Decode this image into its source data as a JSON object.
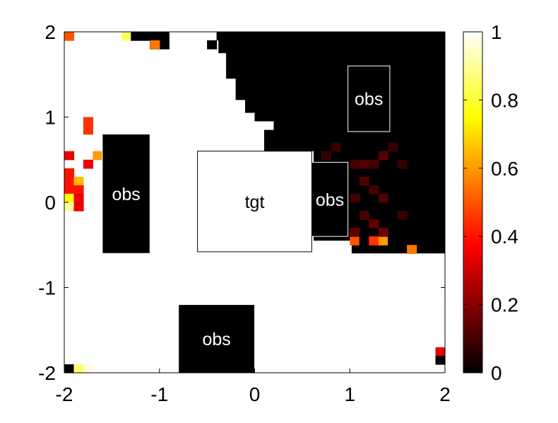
{
  "chart_data": {
    "type": "heatmap",
    "title": "",
    "xlabel": "",
    "ylabel": "",
    "xlim": [
      -2,
      2
    ],
    "ylim": [
      -2,
      2
    ],
    "xticks": [
      -2,
      -1,
      0,
      1,
      2
    ],
    "yticks": [
      -2,
      -1,
      0,
      1,
      2
    ],
    "xtick_labels": [
      "-2",
      "-1",
      "0",
      "1",
      "2"
    ],
    "ytick_labels": [
      "-2",
      "-1",
      "0",
      "1",
      "2"
    ],
    "grid": false,
    "colormap": "hot",
    "colorbar": {
      "range": [
        0,
        1
      ],
      "ticks": [
        0,
        0.2,
        0.4,
        0.6,
        0.8,
        1
      ],
      "tick_labels": [
        "0",
        "0.2",
        "0.4",
        "0.6",
        "0.8",
        "1"
      ]
    },
    "regions": [
      {
        "label": "obs",
        "x0": -1.6,
        "x1": -1.1,
        "y0": -0.6,
        "y1": 0.8
      },
      {
        "label": "obs",
        "x0": -0.8,
        "x1": 0.0,
        "y0": -2.0,
        "y1": -1.2
      },
      {
        "label": "obs",
        "x0": 0.6,
        "x1": 0.98,
        "y0": -0.4,
        "y1": 0.47
      },
      {
        "label": "obs",
        "x0": 0.98,
        "x1": 1.42,
        "y0": 0.83,
        "y1": 1.6
      },
      {
        "label": "tgt",
        "x0": -0.6,
        "x1": 0.6,
        "y0": -0.58,
        "y1": 0.6
      }
    ],
    "dark_region": {
      "value": 0,
      "boundary": [
        [
          -0.4,
          2.0
        ],
        [
          2.0,
          2.0
        ],
        [
          2.0,
          -0.6
        ],
        [
          1.02,
          -0.6
        ],
        [
          1.02,
          -0.45
        ],
        [
          0.62,
          -0.45
        ],
        [
          0.62,
          0.6
        ],
        [
          0.1,
          0.6
        ],
        [
          0.1,
          0.85
        ],
        [
          0.2,
          0.85
        ],
        [
          0.2,
          0.95
        ],
        [
          0.0,
          0.95
        ],
        [
          0.0,
          1.05
        ],
        [
          -0.1,
          1.05
        ],
        [
          -0.1,
          1.2
        ],
        [
          -0.2,
          1.2
        ],
        [
          -0.2,
          1.45
        ],
        [
          -0.3,
          1.45
        ],
        [
          -0.3,
          1.75
        ],
        [
          -0.38,
          1.75
        ],
        [
          -0.38,
          1.9
        ],
        [
          -0.4,
          1.9
        ]
      ]
    },
    "cells": [
      {
        "x": -1.95,
        "y": 1.95,
        "v": 0.5
      },
      {
        "x": -1.35,
        "y": 1.95,
        "v": 0.85
      },
      {
        "x": -1.25,
        "y": 1.95,
        "v": 0.0
      },
      {
        "x": -1.15,
        "y": 1.95,
        "v": 0.0
      },
      {
        "x": -1.05,
        "y": 1.95,
        "v": 0.0
      },
      {
        "x": -0.95,
        "y": 1.95,
        "v": 0.0
      },
      {
        "x": -1.05,
        "y": 1.85,
        "v": 0.0
      },
      {
        "x": -0.95,
        "y": 1.85,
        "v": 0.0
      },
      {
        "x": -1.05,
        "y": 1.85,
        "v": 0.0
      },
      {
        "x": -1.05,
        "y": 1.85,
        "v": 0.55
      },
      {
        "x": -0.45,
        "y": 1.85,
        "v": 0.0
      },
      {
        "x": -1.75,
        "y": 0.95,
        "v": 0.45
      },
      {
        "x": -1.75,
        "y": 0.85,
        "v": 0.45
      },
      {
        "x": -1.95,
        "y": 0.55,
        "v": 0.35
      },
      {
        "x": -1.65,
        "y": 0.55,
        "v": 0.6
      },
      {
        "x": -1.75,
        "y": 0.45,
        "v": 0.35
      },
      {
        "x": -1.95,
        "y": 0.35,
        "v": 0.4
      },
      {
        "x": -1.95,
        "y": 0.25,
        "v": 0.4
      },
      {
        "x": -1.85,
        "y": 0.25,
        "v": 0.65
      },
      {
        "x": -1.95,
        "y": 0.15,
        "v": 0.4
      },
      {
        "x": -1.85,
        "y": 0.15,
        "v": 0.4
      },
      {
        "x": -1.95,
        "y": 0.05,
        "v": 0.75
      },
      {
        "x": -1.85,
        "y": 0.05,
        "v": 0.35
      },
      {
        "x": -1.95,
        "y": -0.05,
        "v": 0.9
      },
      {
        "x": -1.85,
        "y": -0.05,
        "v": 0.35
      },
      {
        "x": 1.05,
        "y": -0.45,
        "v": 0.5
      },
      {
        "x": 1.15,
        "y": -0.45,
        "v": 0.0
      },
      {
        "x": 1.25,
        "y": -0.45,
        "v": 0.45
      },
      {
        "x": 1.35,
        "y": -0.45,
        "v": 0.6
      },
      {
        "x": 1.45,
        "y": -0.45,
        "v": 0.0
      },
      {
        "x": 1.65,
        "y": -0.55,
        "v": 0.55
      },
      {
        "x": 1.95,
        "y": -1.75,
        "v": 0.35
      },
      {
        "x": 1.95,
        "y": -1.85,
        "v": 0.0
      },
      {
        "x": -1.95,
        "y": -1.95,
        "v": 0.0
      },
      {
        "x": -1.85,
        "y": -1.95,
        "v": 0.85
      },
      {
        "x": -1.75,
        "y": -1.95,
        "v": 0.97
      },
      {
        "x": 1.05,
        "y": 0.45,
        "v": 0.1
      },
      {
        "x": 1.15,
        "y": 0.45,
        "v": 0.12
      },
      {
        "x": 1.25,
        "y": 0.45,
        "v": 0.1
      },
      {
        "x": 1.35,
        "y": 0.55,
        "v": 0.12
      },
      {
        "x": 1.15,
        "y": 0.25,
        "v": 0.12
      },
      {
        "x": 1.25,
        "y": 0.15,
        "v": 0.1
      },
      {
        "x": 1.05,
        "y": 0.05,
        "v": 0.1
      },
      {
        "x": 1.35,
        "y": 0.05,
        "v": 0.12
      },
      {
        "x": 1.15,
        "y": -0.15,
        "v": 0.1
      },
      {
        "x": 1.25,
        "y": -0.25,
        "v": 0.14
      },
      {
        "x": 1.05,
        "y": -0.35,
        "v": 0.14
      },
      {
        "x": 1.35,
        "y": -0.35,
        "v": 0.16
      },
      {
        "x": 0.75,
        "y": 0.55,
        "v": 0.08
      },
      {
        "x": 0.85,
        "y": 0.65,
        "v": 0.08
      },
      {
        "x": 1.55,
        "y": 0.45,
        "v": 0.08
      },
      {
        "x": 1.45,
        "y": 0.65,
        "v": 0.08
      },
      {
        "x": 1.55,
        "y": -0.15,
        "v": 0.08
      }
    ]
  }
}
